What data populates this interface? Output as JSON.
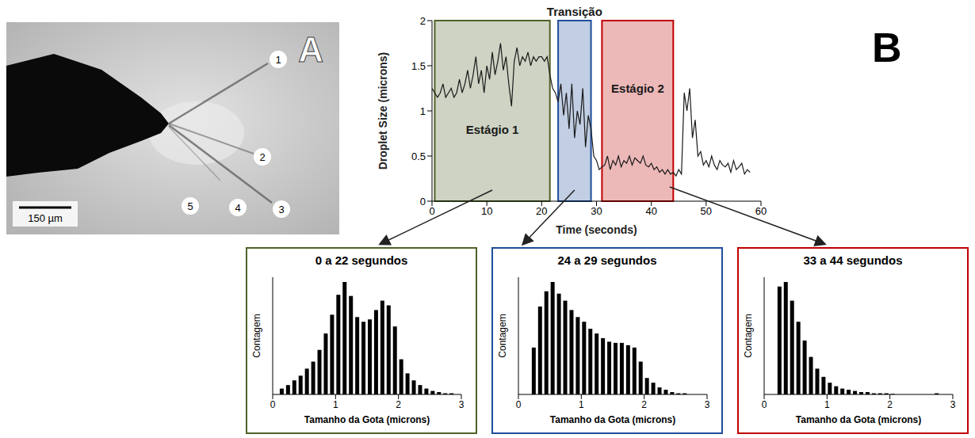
{
  "panel_a": {
    "letter": "A",
    "labels": [
      "1",
      "2",
      "3",
      "4",
      "5"
    ],
    "scale_bar": "150 µm"
  },
  "panel_b": {
    "letter": "B"
  },
  "chart_data": [
    {
      "type": "line",
      "x_label": "Time (seconds)",
      "y_label": "Droplet Size (microns)",
      "color": "#1a1a1a",
      "xlim": [
        0,
        60
      ],
      "xticks": [
        0,
        10,
        20,
        30,
        40,
        50,
        60
      ],
      "ylim": [
        0,
        2
      ],
      "yticks": [
        0,
        0.5,
        1,
        1.5,
        2
      ],
      "regions": [
        {
          "label": "Estágio 1",
          "x0": 0.5,
          "x1": 21.5,
          "color": "#4f6228"
        },
        {
          "label": "Transição",
          "x0": 23,
          "x1": 29,
          "color": "#1f4e9c"
        },
        {
          "label": "Estágio 2",
          "x0": 31,
          "x1": 44,
          "color": "#c00000"
        }
      ],
      "x": [
        0,
        0.5,
        1,
        1.5,
        2,
        2.5,
        3,
        3.5,
        4,
        4.5,
        5,
        5.5,
        6,
        6.5,
        7,
        7.5,
        8,
        8.5,
        9,
        9.5,
        10,
        10.5,
        11,
        11.5,
        12,
        12.5,
        13,
        13.5,
        14,
        14.5,
        15,
        15.5,
        16,
        16.5,
        17,
        17.5,
        18,
        18.5,
        19,
        19.5,
        20,
        20.5,
        21,
        21.5,
        22,
        22.5,
        23,
        23.5,
        24,
        24.5,
        25,
        25.5,
        26,
        26.5,
        27,
        27.5,
        28,
        28.5,
        29,
        29.5,
        30,
        30.5,
        31,
        31.5,
        32,
        32.5,
        33,
        33.5,
        34,
        34.5,
        35,
        35.5,
        36,
        36.5,
        37,
        37.5,
        38,
        38.5,
        39,
        39.5,
        40,
        40.5,
        41,
        41.5,
        42,
        42.5,
        43,
        43.5,
        44,
        44.5,
        45,
        45.5,
        46,
        46.5,
        47,
        47.5,
        48,
        48.5,
        49,
        49.5,
        50,
        50.5,
        51,
        51.5,
        52,
        52.5,
        53,
        53.5,
        54,
        54.5,
        55,
        55.5,
        56,
        56.5,
        57,
        57.5,
        58
      ],
      "values": [
        1.25,
        1.2,
        1.15,
        1.2,
        1.3,
        1.15,
        1.2,
        1.25,
        1.15,
        1.2,
        1.35,
        1.2,
        1.3,
        1.45,
        1.25,
        1.4,
        1.6,
        1.3,
        1.45,
        1.2,
        1.5,
        1.35,
        1.65,
        1.4,
        1.55,
        1.75,
        1.45,
        1.6,
        1.3,
        1.05,
        1.55,
        1.7,
        1.5,
        1.6,
        1.55,
        1.65,
        1.5,
        1.6,
        1.55,
        1.6,
        1.6,
        1.55,
        1.6,
        1.4,
        1.25,
        1.2,
        1.1,
        1.3,
        0.95,
        1.2,
        0.8,
        1.3,
        0.7,
        1.0,
        0.85,
        1.25,
        0.6,
        0.95,
        0.8,
        0.5,
        0.45,
        0.35,
        0.38,
        0.4,
        0.5,
        0.35,
        0.45,
        0.4,
        0.5,
        0.38,
        0.45,
        0.42,
        0.5,
        0.4,
        0.48,
        0.45,
        0.42,
        0.5,
        0.4,
        0.38,
        0.42,
        0.35,
        0.38,
        0.32,
        0.35,
        0.3,
        0.35,
        0.3,
        0.32,
        0.28,
        0.35,
        0.3,
        1.2,
        1.0,
        1.25,
        0.7,
        0.9,
        0.5,
        0.55,
        0.4,
        0.45,
        0.38,
        0.5,
        0.4,
        0.35,
        0.45,
        0.4,
        0.38,
        0.42,
        0.32,
        0.45,
        0.35,
        0.38,
        0.42,
        0.3,
        0.35,
        0.32
      ]
    },
    {
      "type": "histogram",
      "title": "0 a 22 segundos",
      "x_label": "Tamanho da Gota (microns)",
      "y_label": "Contagem",
      "color": "#000000",
      "xlim": [
        0,
        3
      ],
      "xticks": [
        0,
        1,
        2,
        3
      ],
      "ylim": [
        0,
        100
      ],
      "tick_labels": "x",
      "bins": [
        0,
        0.1,
        0.2,
        0.3,
        0.4,
        0.5,
        0.6,
        0.7,
        0.8,
        0.9,
        1,
        1.1,
        1.2,
        1.3,
        1.4,
        1.5,
        1.6,
        1.7,
        1.8,
        1.9,
        2,
        2.1,
        2.2,
        2.3,
        2.4,
        2.5,
        2.6,
        2.7,
        2.8,
        2.9,
        3
      ],
      "counts": [
        0,
        5,
        8,
        12,
        16,
        22,
        28,
        38,
        52,
        68,
        85,
        96,
        84,
        66,
        62,
        64,
        72,
        80,
        76,
        58,
        30,
        18,
        12,
        8,
        5,
        3,
        2,
        1,
        1,
        0
      ]
    },
    {
      "type": "histogram",
      "title": "24 a 29 segundos",
      "x_label": "Tamanho da Gota (microns)",
      "y_label": "Contagem",
      "color": "#000000",
      "xlim": [
        0,
        3
      ],
      "xticks": [
        0,
        1,
        2,
        3
      ],
      "ylim": [
        0,
        100
      ],
      "tick_labels": "x",
      "bins": [
        0,
        0.1,
        0.2,
        0.3,
        0.4,
        0.5,
        0.6,
        0.7,
        0.8,
        0.9,
        1,
        1.1,
        1.2,
        1.3,
        1.4,
        1.5,
        1.6,
        1.7,
        1.8,
        1.9,
        2,
        2.1,
        2.2,
        2.3,
        2.4,
        2.5,
        2.6,
        2.7,
        2.8,
        2.9,
        3
      ],
      "counts": [
        0,
        0,
        40,
        75,
        88,
        96,
        86,
        80,
        72,
        66,
        62,
        56,
        52,
        48,
        45,
        44,
        44,
        42,
        40,
        28,
        14,
        10,
        6,
        4,
        2,
        1,
        1,
        0,
        0,
        0
      ]
    },
    {
      "type": "histogram",
      "title": "33 a 44 segundos",
      "x_label": "Tamanho da Gota (microns)",
      "y_label": "Contagem",
      "color": "#000000",
      "xlim": [
        0,
        3
      ],
      "xticks": [
        0,
        1,
        2,
        3
      ],
      "ylim": [
        0,
        100
      ],
      "tick_labels": "x",
      "bins": [
        0,
        0.1,
        0.2,
        0.3,
        0.4,
        0.5,
        0.6,
        0.7,
        0.8,
        0.9,
        1,
        1.1,
        1.2,
        1.3,
        1.4,
        1.5,
        1.6,
        1.7,
        1.8,
        1.9,
        2,
        2.1,
        2.2,
        2.3,
        2.4,
        2.5,
        2.6,
        2.7,
        2.8,
        2.9,
        3
      ],
      "counts": [
        0,
        0,
        92,
        96,
        80,
        62,
        46,
        32,
        22,
        15,
        10,
        7,
        5,
        4,
        3,
        2,
        2,
        1,
        1,
        1,
        0.5,
        0,
        0,
        0,
        0,
        0,
        0,
        1,
        0,
        0
      ]
    }
  ]
}
